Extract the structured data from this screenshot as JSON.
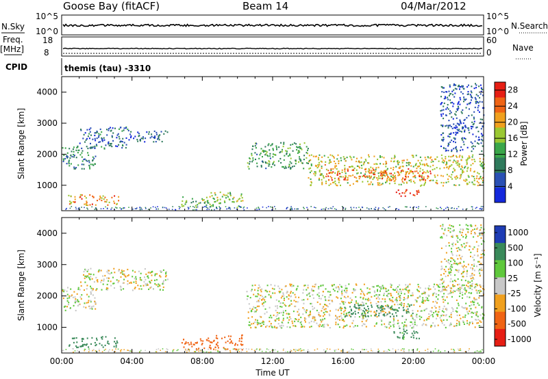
{
  "header": {
    "station": "Goose Bay (fitACF)",
    "beam": "Beam 14",
    "date": "04/Mar/2012"
  },
  "summary": {
    "nsky": {
      "label": "N.Sky",
      "ticks": [
        "10^5",
        "10^0"
      ]
    },
    "nsearch": {
      "label": "N.Search",
      "ticks": [
        "10^5",
        "10^0"
      ]
    },
    "freq": {
      "label": "Freq.",
      "unit": "[MHz]",
      "ticks": [
        "18",
        "8"
      ]
    },
    "nave": {
      "label": "Nave",
      "ticks": [
        "60",
        "0"
      ]
    },
    "cpid": {
      "label": "CPID",
      "value": "themis (tau) -3310"
    }
  },
  "chart_data": [
    {
      "type": "heatmap",
      "title": "",
      "xlabel": "",
      "ylabel": "Slant Range [km]",
      "ylim": [
        180,
        4500
      ],
      "xlim": [
        "00:00",
        "24:00"
      ],
      "yticks": [
        1000,
        2000,
        3000,
        4000
      ],
      "colorbar": {
        "label": "Power [dB]",
        "ticks": [
          4,
          8,
          12,
          16,
          20,
          24,
          28
        ],
        "range": [
          0,
          30
        ]
      },
      "echo_regions": [
        {
          "t0": 0.0,
          "t1": 1.9,
          "r0": 1550,
          "r1": 2300,
          "power_db": 10
        },
        {
          "t0": 1.0,
          "t1": 3.8,
          "r0": 2200,
          "r1": 2900,
          "power_db": 7
        },
        {
          "t0": 3.8,
          "t1": 6.0,
          "r0": 2400,
          "r1": 2800,
          "power_db": 6
        },
        {
          "t0": 0.3,
          "t1": 3.2,
          "r0": 380,
          "r1": 720,
          "power_db": 22
        },
        {
          "t0": 6.8,
          "t1": 8.3,
          "r0": 300,
          "r1": 650,
          "power_db": 14
        },
        {
          "t0": 8.3,
          "t1": 10.3,
          "r0": 300,
          "r1": 800,
          "power_db": 16
        },
        {
          "t0": 10.5,
          "t1": 14.0,
          "r0": 1550,
          "r1": 2400,
          "power_db": 12
        },
        {
          "t0": 14.0,
          "t1": 24.0,
          "r0": 1000,
          "r1": 2000,
          "power_db": 18
        },
        {
          "t0": 15.0,
          "t1": 21.0,
          "r0": 1150,
          "r1": 1550,
          "power_db": 24
        },
        {
          "t0": 19.0,
          "t1": 20.3,
          "r0": 650,
          "r1": 900,
          "power_db": 29
        },
        {
          "t0": 21.5,
          "t1": 24.0,
          "r0": 2100,
          "r1": 4300,
          "power_db": 6
        }
      ]
    },
    {
      "type": "heatmap",
      "title": "",
      "xlabel": "Time UT",
      "ylabel": "Slant Range [km]",
      "ylim": [
        180,
        4500
      ],
      "xlim": [
        "00:00",
        "24:00"
      ],
      "xticks": [
        "00:00",
        "04:00",
        "08:00",
        "12:00",
        "16:00",
        "20:00",
        "00:00"
      ],
      "yticks": [
        1000,
        2000,
        3000,
        4000
      ],
      "colorbar": {
        "label": "Velocity [m s⁻¹]",
        "ticks": [
          1000,
          500,
          100,
          25,
          -25,
          -100,
          -500,
          -1000
        ]
      },
      "echo_regions": [
        {
          "t0": 0.0,
          "t1": 1.9,
          "r0": 1550,
          "r1": 2300,
          "velocity": 0
        },
        {
          "t0": 1.0,
          "t1": 6.0,
          "r0": 2200,
          "r1": 2900,
          "velocity": 0
        },
        {
          "t0": 0.3,
          "t1": 3.2,
          "r0": 380,
          "r1": 720,
          "velocity": 300
        },
        {
          "t0": 6.8,
          "t1": 8.3,
          "r0": 300,
          "r1": 650,
          "velocity": -200
        },
        {
          "t0": 8.3,
          "t1": 10.3,
          "r0": 300,
          "r1": 800,
          "velocity": -300
        },
        {
          "t0": 10.5,
          "t1": 24.0,
          "r0": 1000,
          "r1": 2400,
          "velocity": 0
        },
        {
          "t0": 16.0,
          "t1": 20.0,
          "r0": 1350,
          "r1": 1750,
          "velocity": 400
        },
        {
          "t0": 18.8,
          "t1": 20.3,
          "r0": 650,
          "r1": 1000,
          "velocity": 150
        },
        {
          "t0": 21.5,
          "t1": 24.0,
          "r0": 2100,
          "r1": 4300,
          "velocity": 0
        }
      ]
    }
  ],
  "colors": {
    "power": [
      "#1428dc",
      "#2a50b4",
      "#2f7a5c",
      "#3aa64a",
      "#9ac832",
      "#f0a01e",
      "#f06414",
      "#e61e14"
    ],
    "velocity_pos": [
      "#1e3cb4",
      "#3a8a5a",
      "#5fc83c"
    ],
    "velocity_zero": "#c8c8c8",
    "velocity_neg": [
      "#f0a01e",
      "#f06414",
      "#e61e14"
    ]
  }
}
